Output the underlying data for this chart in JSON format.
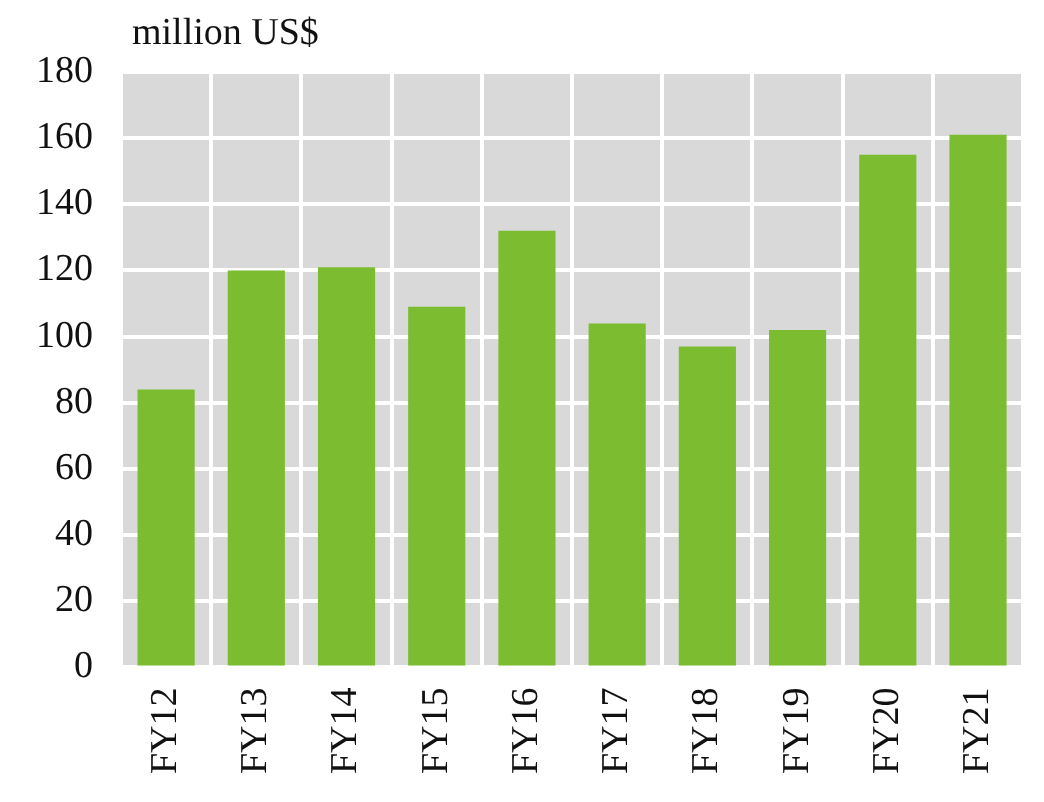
{
  "chart_data": {
    "type": "bar",
    "ylabel": "million US$",
    "categories": [
      "FY12",
      "FY13",
      "FY14",
      "FY15",
      "FY16",
      "FY17",
      "FY18",
      "FY19",
      "FY20",
      "FY21"
    ],
    "values": [
      84,
      120,
      121,
      109,
      132,
      104,
      97,
      102,
      155,
      161
    ],
    "color": "#7bbc31",
    "ylim": [
      0,
      180
    ],
    "yticks": [
      0,
      20,
      40,
      60,
      80,
      100,
      120,
      140,
      160,
      180
    ],
    "grid": true,
    "legend": false
  }
}
